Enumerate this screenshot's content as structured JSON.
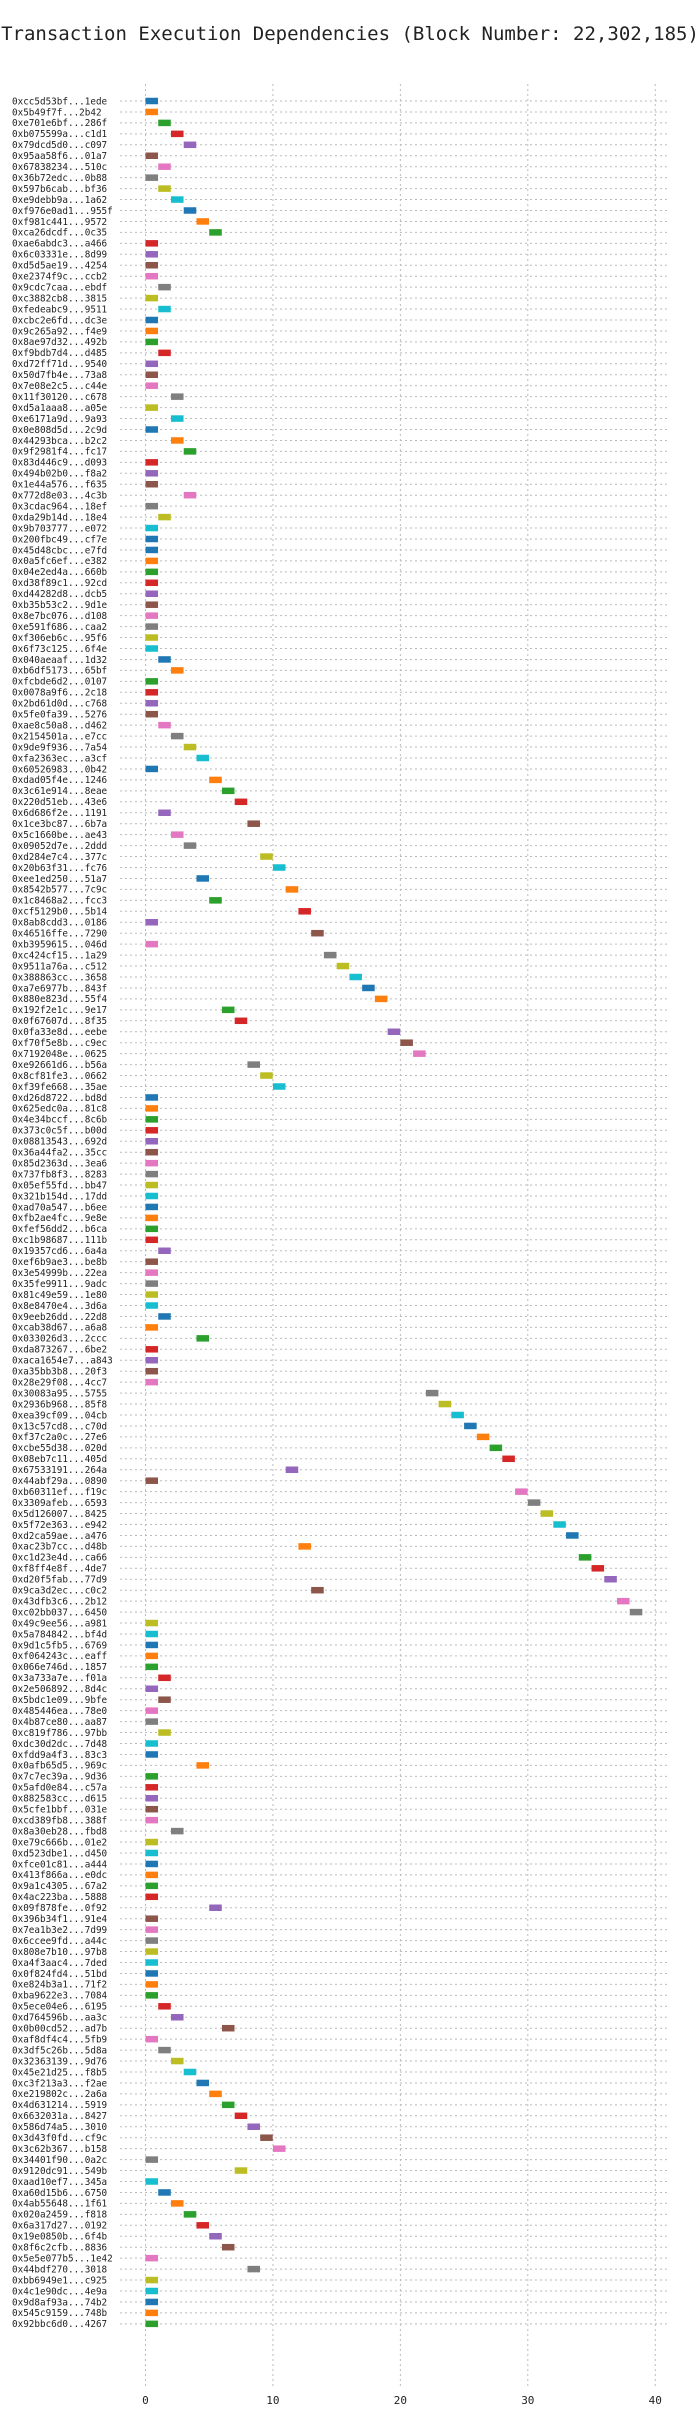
{
  "chart_data": {
    "type": "bar",
    "orientation": "horizontal",
    "title": "Transaction Execution Dependencies (Block Number: 22,302,185)",
    "xlabel": "",
    "ylabel": "",
    "xlim": [
      -2,
      41
    ],
    "xticks": [
      "0",
      "10",
      "20",
      "30",
      "40"
    ],
    "grid": true,
    "bar_length": 1,
    "palette": [
      "#1f77b4",
      "#ff7f0e",
      "#2ca02c",
      "#d62728",
      "#9467bd",
      "#8c564b",
      "#e377c2",
      "#7f7f7f",
      "#bcbd22",
      "#17becf"
    ],
    "transactions": [
      {
        "label": "0xcc5d53bf...1ede",
        "start": 0,
        "color": 0
      },
      {
        "label": "0x5b49f7f...2b42",
        "start": 0,
        "color": 1
      },
      {
        "label": "0xe701e6bf...286f",
        "start": 1,
        "color": 2
      },
      {
        "label": "0xb075599a...c1d1",
        "start": 2,
        "color": 3
      },
      {
        "label": "0x79dcd5d0...c097",
        "start": 3,
        "color": 4
      },
      {
        "label": "0x95aa58f6...01a7",
        "start": 0,
        "color": 5
      },
      {
        "label": "0x67838234...510c",
        "start": 1,
        "color": 6
      },
      {
        "label": "0x36b72edc...0b88",
        "start": 0,
        "color": 7
      },
      {
        "label": "0x597b6cab...bf36",
        "start": 1,
        "color": 8
      },
      {
        "label": "0xe9debb9a...1a62",
        "start": 2,
        "color": 9
      },
      {
        "label": "0xf976e0ad1...955f",
        "start": 3,
        "color": 0
      },
      {
        "label": "0xf981c441...9572",
        "start": 4,
        "color": 1
      },
      {
        "label": "0xca26dcdf...0c35",
        "start": 5,
        "color": 2
      },
      {
        "label": "0xae6abdc3...a466",
        "start": 0,
        "color": 3
      },
      {
        "label": "0x6c03331e...8d99",
        "start": 0,
        "color": 4
      },
      {
        "label": "0xd5d5ae19...4254",
        "start": 0,
        "color": 5
      },
      {
        "label": "0xe2374f9c...ccb2",
        "start": 0,
        "color": 6
      },
      {
        "label": "0x9cdc7caa...ebdf",
        "start": 1,
        "color": 7
      },
      {
        "label": "0xc3882cb8...3815",
        "start": 0,
        "color": 8
      },
      {
        "label": "0xfedeabc9...9511",
        "start": 1,
        "color": 9
      },
      {
        "label": "0xcbc2e6fd...dc3e",
        "start": 0,
        "color": 0
      },
      {
        "label": "0x9c265a92...f4e9",
        "start": 0,
        "color": 1
      },
      {
        "label": "0x8ae97d32...492b",
        "start": 0,
        "color": 2
      },
      {
        "label": "0xf9bdb7d4...d485",
        "start": 1,
        "color": 3
      },
      {
        "label": "0xd72ff71d...9540",
        "start": 0,
        "color": 4
      },
      {
        "label": "0x50d7fb4e...73a8",
        "start": 0,
        "color": 5
      },
      {
        "label": "0x7e08e2c5...c44e",
        "start": 0,
        "color": 6
      },
      {
        "label": "0x11f30120...c678",
        "start": 2,
        "color": 7
      },
      {
        "label": "0xd5a1aaa8...a05e",
        "start": 0,
        "color": 8
      },
      {
        "label": "0xe6171a9d...9a93",
        "start": 2,
        "color": 9
      },
      {
        "label": "0x0e808d5d...2c9d",
        "start": 0,
        "color": 0
      },
      {
        "label": "0x44293bca...b2c2",
        "start": 2,
        "color": 1
      },
      {
        "label": "0x9f2981f4...fc17",
        "start": 3,
        "color": 2
      },
      {
        "label": "0x83d446c9...d093",
        "start": 0,
        "color": 3
      },
      {
        "label": "0x494b02b0...f8a2",
        "start": 0,
        "color": 4
      },
      {
        "label": "0x1e44a576...f635",
        "start": 0,
        "color": 5
      },
      {
        "label": "0x772d8e03...4c3b",
        "start": 3,
        "color": 6
      },
      {
        "label": "0x3cdac964...18ef",
        "start": 0,
        "color": 7
      },
      {
        "label": "0xda29b14d...18e4",
        "start": 1,
        "color": 8
      },
      {
        "label": "0x9b703777...e072",
        "start": 0,
        "color": 9
      },
      {
        "label": "0x200fbc49...cf7e",
        "start": 0,
        "color": 0
      },
      {
        "label": "0x45d48cbc...e7fd",
        "start": 0,
        "color": 0
      },
      {
        "label": "0x0a5fc6ef...e382",
        "start": 0,
        "color": 1
      },
      {
        "label": "0x04e2ed4a...660b",
        "start": 0,
        "color": 2
      },
      {
        "label": "0xd38f89c1...92cd",
        "start": 0,
        "color": 3
      },
      {
        "label": "0xd44282d8...dcb5",
        "start": 0,
        "color": 4
      },
      {
        "label": "0xb35b53c2...9d1e",
        "start": 0,
        "color": 5
      },
      {
        "label": "0x8e7bc076...d108",
        "start": 0,
        "color": 6
      },
      {
        "label": "0xe591f686...caa2",
        "start": 0,
        "color": 7
      },
      {
        "label": "0xf306eb6c...95f6",
        "start": 0,
        "color": 8
      },
      {
        "label": "0x6f73c125...6f4e",
        "start": 0,
        "color": 9
      },
      {
        "label": "0x040aeaaf...1d32",
        "start": 1,
        "color": 0
      },
      {
        "label": "0xb6df5173...65bf",
        "start": 2,
        "color": 1
      },
      {
        "label": "0xfcbde6d2...0107",
        "start": 0,
        "color": 2
      },
      {
        "label": "0x0078a9f6...2c18",
        "start": 0,
        "color": 3
      },
      {
        "label": "0x2bd61d0d...c768",
        "start": 0,
        "color": 4
      },
      {
        "label": "0x5fe0fa39...5276",
        "start": 0,
        "color": 5
      },
      {
        "label": "0xae8c50a8...d462",
        "start": 1,
        "color": 6
      },
      {
        "label": "0x2154501a...e7cc",
        "start": 2,
        "color": 7
      },
      {
        "label": "0x9de9f936...7a54",
        "start": 3,
        "color": 8
      },
      {
        "label": "0xfa2363ec...a3cf",
        "start": 4,
        "color": 9
      },
      {
        "label": "0x60526983...0b42",
        "start": 0,
        "color": 0
      },
      {
        "label": "0xdad05f4e...1246",
        "start": 5,
        "color": 1
      },
      {
        "label": "0x3c61e914...8eae",
        "start": 6,
        "color": 2
      },
      {
        "label": "0x220d51eb...43e6",
        "start": 7,
        "color": 3
      },
      {
        "label": "0x6d686f2e...1191",
        "start": 1,
        "color": 4
      },
      {
        "label": "0x1ce3bc87...6b7a",
        "start": 8,
        "color": 5
      },
      {
        "label": "0x5c1660be...ae43",
        "start": 2,
        "color": 6
      },
      {
        "label": "0x09052d7e...2ddd",
        "start": 3,
        "color": 7
      },
      {
        "label": "0xd284e7c4...377c",
        "start": 9,
        "color": 8
      },
      {
        "label": "0x20b63f31...fc76",
        "start": 10,
        "color": 9
      },
      {
        "label": "0xee1ed250...51a7",
        "start": 4,
        "color": 0
      },
      {
        "label": "0x8542b577...7c9c",
        "start": 11,
        "color": 1
      },
      {
        "label": "0x1c8468a2...fcc3",
        "start": 5,
        "color": 2
      },
      {
        "label": "0xcf5129b0...5b14",
        "start": 12,
        "color": 3
      },
      {
        "label": "0x8ab8cdd3...0186",
        "start": 0,
        "color": 4
      },
      {
        "label": "0x46516ffe...7290",
        "start": 13,
        "color": 5
      },
      {
        "label": "0xb3959615...046d",
        "start": 0,
        "color": 6
      },
      {
        "label": "0xc424cf15...1a29",
        "start": 14,
        "color": 7
      },
      {
        "label": "0x9511a76a...c512",
        "start": 15,
        "color": 8
      },
      {
        "label": "0x388863cc...3658",
        "start": 16,
        "color": 9
      },
      {
        "label": "0xa7e6977b...843f",
        "start": 17,
        "color": 0
      },
      {
        "label": "0x880e823d...55f4",
        "start": 18,
        "color": 1
      },
      {
        "label": "0x192f2e1c...9e17",
        "start": 6,
        "color": 2
      },
      {
        "label": "0x0f67607d...8f35",
        "start": 7,
        "color": 3
      },
      {
        "label": "0x0fa33e8d...eebe",
        "start": 19,
        "color": 4
      },
      {
        "label": "0xf70f5e8b...c9ec",
        "start": 20,
        "color": 5
      },
      {
        "label": "0x7192048e...0625",
        "start": 21,
        "color": 6
      },
      {
        "label": "0xe92661d6...b56a",
        "start": 8,
        "color": 7
      },
      {
        "label": "0x8cf81fe3...0662",
        "start": 9,
        "color": 8
      },
      {
        "label": "0xf39fe668...35ae",
        "start": 10,
        "color": 9
      },
      {
        "label": "0xd26d8722...bd8d",
        "start": 0,
        "color": 0
      },
      {
        "label": "0x625edc0a...81c8",
        "start": 0,
        "color": 1
      },
      {
        "label": "0x4e34bccf...8c6b",
        "start": 0,
        "color": 2
      },
      {
        "label": "0x373c0c5f...b00d",
        "start": 0,
        "color": 3
      },
      {
        "label": "0x08813543...692d",
        "start": 0,
        "color": 4
      },
      {
        "label": "0x36a44fa2...35cc",
        "start": 0,
        "color": 5
      },
      {
        "label": "0x85d2363d...3ea6",
        "start": 0,
        "color": 6
      },
      {
        "label": "0x737fb8f3...8283",
        "start": 0,
        "color": 7
      },
      {
        "label": "0x05ef55fd...bb47",
        "start": 0,
        "color": 8
      },
      {
        "label": "0x321b154d...17dd",
        "start": 0,
        "color": 9
      },
      {
        "label": "0xad70a547...b6ee",
        "start": 0,
        "color": 0
      },
      {
        "label": "0xfb2ae4fc...9e8e",
        "start": 0,
        "color": 1
      },
      {
        "label": "0xfef56dd2...b6ca",
        "start": 0,
        "color": 2
      },
      {
        "label": "0xc1b98687...111b",
        "start": 0,
        "color": 3
      },
      {
        "label": "0x19357cd6...6a4a",
        "start": 1,
        "color": 4
      },
      {
        "label": "0xef6b9ae3...be8b",
        "start": 0,
        "color": 5
      },
      {
        "label": "0x3e54999b...22ea",
        "start": 0,
        "color": 6
      },
      {
        "label": "0x35fe9911...9adc",
        "start": 0,
        "color": 7
      },
      {
        "label": "0x81c49e59...1e80",
        "start": 0,
        "color": 8
      },
      {
        "label": "0x8e8470e4...3d6a",
        "start": 0,
        "color": 9
      },
      {
        "label": "0x9eeb26dd...22d8",
        "start": 1,
        "color": 0
      },
      {
        "label": "0xcab38d67...a6a8",
        "start": 0,
        "color": 1
      },
      {
        "label": "0x033026d3...2ccc",
        "start": 4,
        "color": 2
      },
      {
        "label": "0xda873267...6be2",
        "start": 0,
        "color": 3
      },
      {
        "label": "0xaca1654e7...a843",
        "start": 0,
        "color": 4
      },
      {
        "label": "0xa35bb3b8...20f3",
        "start": 0,
        "color": 5
      },
      {
        "label": "0x28e29f08...4cc7",
        "start": 0,
        "color": 6
      },
      {
        "label": "0x30083a95...5755",
        "start": 22,
        "color": 7
      },
      {
        "label": "0x2936b968...85f8",
        "start": 23,
        "color": 8
      },
      {
        "label": "0xea39cf09...04cb",
        "start": 24,
        "color": 9
      },
      {
        "label": "0x13c57cd8...c70d",
        "start": 25,
        "color": 0
      },
      {
        "label": "0xf37c2a0c...27e6",
        "start": 26,
        "color": 1
      },
      {
        "label": "0xcbe55d38...020d",
        "start": 27,
        "color": 2
      },
      {
        "label": "0x08eb7c11...405d",
        "start": 28,
        "color": 3
      },
      {
        "label": "0x67533191...264a",
        "start": 11,
        "color": 4
      },
      {
        "label": "0x44abf29a...0890",
        "start": 0,
        "color": 5
      },
      {
        "label": "0xb60311ef...f19c",
        "start": 29,
        "color": 6
      },
      {
        "label": "0x3309afeb...6593",
        "start": 30,
        "color": 7
      },
      {
        "label": "0x5d126007...8425",
        "start": 31,
        "color": 8
      },
      {
        "label": "0x5f72e363...e942",
        "start": 32,
        "color": 9
      },
      {
        "label": "0xd2ca59ae...a476",
        "start": 33,
        "color": 0
      },
      {
        "label": "0xac23b7cc...d48b",
        "start": 12,
        "color": 1
      },
      {
        "label": "0xc1d23e4d...ca66",
        "start": 34,
        "color": 2
      },
      {
        "label": "0xf8ff4e8f...4de7",
        "start": 35,
        "color": 3
      },
      {
        "label": "0xd20f5fab...77d9",
        "start": 36,
        "color": 4
      },
      {
        "label": "0x9ca3d2ec...c0c2",
        "start": 13,
        "color": 5
      },
      {
        "label": "0x43dfb3c6...2b12",
        "start": 37,
        "color": 6
      },
      {
        "label": "0xc02bb037...6450",
        "start": 38,
        "color": 7
      },
      {
        "label": "0x49c9ee56...a981",
        "start": 0,
        "color": 8
      },
      {
        "label": "0x5a784842...bf4d",
        "start": 0,
        "color": 9
      },
      {
        "label": "0x9d1c5fb5...6769",
        "start": 0,
        "color": 0
      },
      {
        "label": "0xf064243c...eaff",
        "start": 0,
        "color": 1
      },
      {
        "label": "0x066e746d...1857",
        "start": 0,
        "color": 2
      },
      {
        "label": "0x3a733a7e...f01a",
        "start": 1,
        "color": 3
      },
      {
        "label": "0x2e506892...8d4c",
        "start": 0,
        "color": 4
      },
      {
        "label": "0x5bdc1e09...9bfe",
        "start": 1,
        "color": 5
      },
      {
        "label": "0x485446ea...78e0",
        "start": 0,
        "color": 6
      },
      {
        "label": "0x4b87ce80...aa87",
        "start": 0,
        "color": 7
      },
      {
        "label": "0xc819f786...97bb",
        "start": 1,
        "color": 8
      },
      {
        "label": "0xdc30d2dc...7d48",
        "start": 0,
        "color": 9
      },
      {
        "label": "0xfdd9a4f3...83c3",
        "start": 0,
        "color": 0
      },
      {
        "label": "0x0afb65d5...969c",
        "start": 4,
        "color": 1
      },
      {
        "label": "0x7c7ec39a...9d36",
        "start": 0,
        "color": 2
      },
      {
        "label": "0x5afd0e84...c57a",
        "start": 0,
        "color": 3
      },
      {
        "label": "0x882583cc...d615",
        "start": 0,
        "color": 4
      },
      {
        "label": "0x5cfe1bbf...031e",
        "start": 0,
        "color": 5
      },
      {
        "label": "0xcd389fb8...388f",
        "start": 0,
        "color": 6
      },
      {
        "label": "0x8a30eb28...fbd8",
        "start": 2,
        "color": 7
      },
      {
        "label": "0xe79c666b...01e2",
        "start": 0,
        "color": 8
      },
      {
        "label": "0xd523dbe1...d450",
        "start": 0,
        "color": 9
      },
      {
        "label": "0xfce01c81...a444",
        "start": 0,
        "color": 0
      },
      {
        "label": "0x413f866a...e0dc",
        "start": 0,
        "color": 1
      },
      {
        "label": "0x9a1c4305...67a2",
        "start": 0,
        "color": 2
      },
      {
        "label": "0x4ac223ba...5888",
        "start": 0,
        "color": 3
      },
      {
        "label": "0x09f878fe...0f92",
        "start": 5,
        "color": 4
      },
      {
        "label": "0x396b34f1...91e4",
        "start": 0,
        "color": 5
      },
      {
        "label": "0x7ea1b3e2...7d99",
        "start": 0,
        "color": 6
      },
      {
        "label": "0x6ccee9fd...a44c",
        "start": 0,
        "color": 7
      },
      {
        "label": "0x808e7b10...97b8",
        "start": 0,
        "color": 8
      },
      {
        "label": "0xa4f3aac4...7ded",
        "start": 0,
        "color": 9
      },
      {
        "label": "0x0f824fd4...51bd",
        "start": 0,
        "color": 0
      },
      {
        "label": "0xe824b3a1...71f2",
        "start": 0,
        "color": 1
      },
      {
        "label": "0xba9622e3...7084",
        "start": 0,
        "color": 2
      },
      {
        "label": "0x5ece04e6...6195",
        "start": 1,
        "color": 3
      },
      {
        "label": "0xd764596b...aa3c",
        "start": 2,
        "color": 4
      },
      {
        "label": "0x0b00cd52...ad7b",
        "start": 6,
        "color": 5
      },
      {
        "label": "0xaf8df4c4...5fb9",
        "start": 0,
        "color": 6
      },
      {
        "label": "0x3df5c26b...5d8a",
        "start": 1,
        "color": 7
      },
      {
        "label": "0x32363139...9d76",
        "start": 2,
        "color": 8
      },
      {
        "label": "0x45e21d25...f8b5",
        "start": 3,
        "color": 9
      },
      {
        "label": "0xc3f213a3...f2ae",
        "start": 4,
        "color": 0
      },
      {
        "label": "0xe219802c...2a6a",
        "start": 5,
        "color": 1
      },
      {
        "label": "0x4d631214...5919",
        "start": 6,
        "color": 2
      },
      {
        "label": "0x6632031a...8427",
        "start": 7,
        "color": 3
      },
      {
        "label": "0x586d74a5...3010",
        "start": 8,
        "color": 4
      },
      {
        "label": "0x3d43f0fd...cf9c",
        "start": 9,
        "color": 5
      },
      {
        "label": "0x3c62b367...b158",
        "start": 10,
        "color": 6
      },
      {
        "label": "0x34401f90...0a2c",
        "start": 0,
        "color": 7
      },
      {
        "label": "0x9120dc91...549b",
        "start": 7,
        "color": 8
      },
      {
        "label": "0xaad10ef7...345a",
        "start": 0,
        "color": 9
      },
      {
        "label": "0xa60d15b6...6750",
        "start": 1,
        "color": 0
      },
      {
        "label": "0x4ab55648...1f61",
        "start": 2,
        "color": 1
      },
      {
        "label": "0x020a2459...f818",
        "start": 3,
        "color": 2
      },
      {
        "label": "0x6a317d27...0192",
        "start": 4,
        "color": 3
      },
      {
        "label": "0x19e0850b...6f4b",
        "start": 5,
        "color": 4
      },
      {
        "label": "0x8f6c2cfb...8836",
        "start": 6,
        "color": 5
      },
      {
        "label": "0x5e5e077b5...1e42",
        "start": 0,
        "color": 6
      },
      {
        "label": "0x44bdf270...3018",
        "start": 8,
        "color": 7
      },
      {
        "label": "0xbb6949e1...c925",
        "start": 0,
        "color": 8
      },
      {
        "label": "0x4c1e90dc...4e9a",
        "start": 0,
        "color": 9
      },
      {
        "label": "0x9d8af93a...74b2",
        "start": 0,
        "color": 0
      },
      {
        "label": "0x545c9159...748b",
        "start": 0,
        "color": 1
      },
      {
        "label": "0x92bbc6d0...4267",
        "start": 0,
        "color": 2
      }
    ]
  }
}
